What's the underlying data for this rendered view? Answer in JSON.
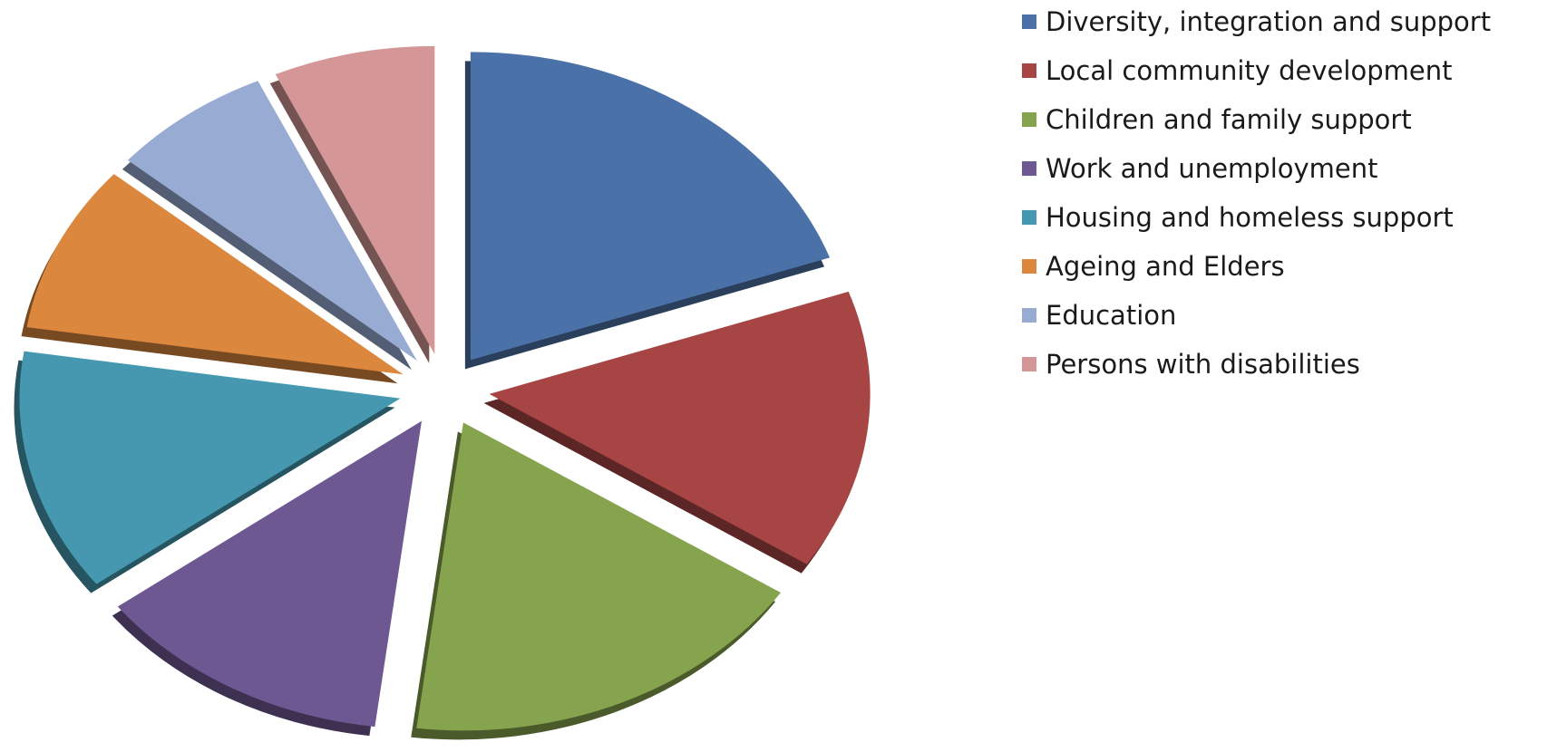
{
  "chart_data": {
    "type": "pie",
    "exploded": true,
    "three_d": true,
    "legend_position": "right",
    "slices": [
      {
        "label": "Diversity, integration and support",
        "value": 20,
        "color": "#4a72a8"
      },
      {
        "label": "Local community development",
        "value": 15,
        "color": "#a64543"
      },
      {
        "label": "Children and family support",
        "value": 18,
        "color": "#86a34e"
      },
      {
        "label": "Work and unemployment",
        "value": 13,
        "color": "#6e5892"
      },
      {
        "label": "Housing and homeless support",
        "value": 13,
        "color": "#4598b0"
      },
      {
        "label": "Ageing and Elders",
        "value": 9,
        "color": "#db873e"
      },
      {
        "label": "Education",
        "value": 7,
        "color": "#97abd3"
      },
      {
        "label": "Persons with disabilities",
        "value": 7,
        "color": "#d49696"
      }
    ]
  }
}
